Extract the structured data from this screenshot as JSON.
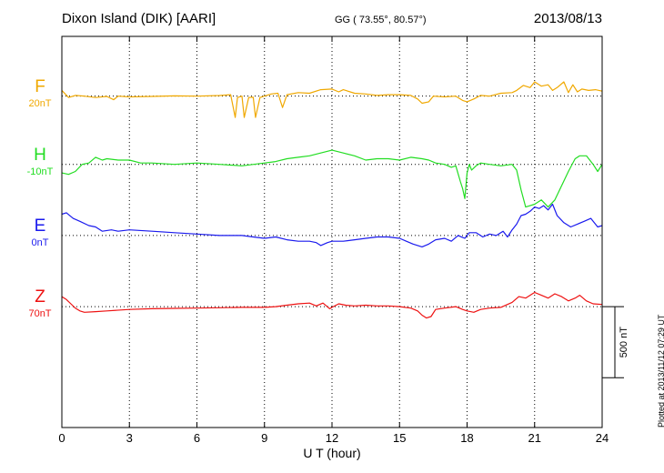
{
  "header": {
    "station": "Dixon Island (DIK)  [AARI]",
    "coords": "GG ( 73.55°,  80.57°)",
    "date": "2013/08/13"
  },
  "footer": {
    "plotted": "Plotted at 2013/11/12 07:29 UT"
  },
  "colors": {
    "F": "#f0a800",
    "H": "#22dd22",
    "E": "#1a1aee",
    "Z": "#ee1111"
  },
  "chart_data": {
    "type": "line",
    "xlabel": "U T (hour)",
    "xlim": [
      0,
      24
    ],
    "xticks": [
      0,
      3,
      6,
      9,
      12,
      15,
      18,
      21,
      24
    ],
    "ylim": [
      -850,
      1900
    ],
    "scale_bar": "500 nT",
    "grid": true,
    "series": [
      {
        "name": "F",
        "baseline": "20nT",
        "baseline_value": 1480,
        "color": "#f0a800",
        "x": [
          0,
          0.3,
          0.6,
          1.0,
          1.5,
          2.0,
          2.3,
          2.5,
          3.0,
          4.0,
          5.0,
          6.0,
          7.0,
          7.5,
          7.7,
          7.8,
          8.0,
          8.1,
          8.3,
          8.5,
          8.6,
          8.8,
          9.0,
          9.3,
          9.6,
          9.8,
          10.0,
          10.5,
          11.0,
          11.5,
          12.0,
          12.3,
          12.5,
          13.0,
          13.5,
          14.0,
          14.5,
          15.0,
          15.5,
          15.8,
          16.0,
          16.3,
          16.5,
          17.0,
          17.5,
          17.8,
          18.0,
          18.3,
          18.6,
          19.0,
          19.5,
          20.0,
          20.2,
          20.5,
          20.8,
          21.0,
          21.3,
          21.6,
          21.8,
          22.0,
          22.3,
          22.5,
          22.7,
          22.9,
          23.1,
          23.4,
          23.7,
          24.0
        ],
        "values": [
          1520,
          1470,
          1485,
          1480,
          1470,
          1478,
          1455,
          1480,
          1475,
          1478,
          1482,
          1480,
          1484,
          1490,
          1330,
          1470,
          1480,
          1330,
          1470,
          1472,
          1330,
          1470,
          1480,
          1495,
          1500,
          1400,
          1490,
          1505,
          1500,
          1525,
          1530,
          1510,
          1525,
          1500,
          1495,
          1485,
          1490,
          1490,
          1485,
          1460,
          1430,
          1440,
          1480,
          1475,
          1480,
          1450,
          1440,
          1460,
          1485,
          1480,
          1500,
          1505,
          1520,
          1555,
          1540,
          1580,
          1550,
          1560,
          1520,
          1540,
          1580,
          1505,
          1560,
          1510,
          1530,
          1520,
          1525,
          1515
        ]
      },
      {
        "name": "H",
        "baseline": "-10nT",
        "baseline_value": 1000,
        "color": "#22dd22",
        "x": [
          0,
          0.3,
          0.6,
          0.9,
          1.2,
          1.5,
          1.8,
          2.0,
          2.5,
          3.0,
          3.5,
          4.0,
          5.0,
          6.0,
          7.0,
          8.0,
          9.0,
          9.5,
          10.0,
          10.5,
          11.0,
          11.5,
          12.0,
          12.5,
          13.0,
          13.5,
          14.0,
          14.5,
          15.0,
          15.5,
          16.0,
          16.3,
          16.6,
          17.0,
          17.3,
          17.5,
          17.7,
          17.8,
          17.9,
          18.0,
          18.1,
          18.2,
          18.4,
          18.6,
          19.0,
          19.5,
          20.0,
          20.2,
          20.4,
          20.6,
          20.8,
          21.0,
          21.3,
          21.6,
          21.9,
          22.2,
          22.5,
          22.8,
          23.0,
          23.3,
          23.6,
          23.8,
          24.0
        ],
        "values": [
          940,
          930,
          950,
          1000,
          1010,
          1050,
          1030,
          1040,
          1030,
          1030,
          1010,
          1010,
          1000,
          1010,
          1000,
          990,
          1010,
          1020,
          1040,
          1050,
          1060,
          1080,
          1100,
          1080,
          1060,
          1030,
          1040,
          1040,
          1030,
          1050,
          1040,
          1030,
          1010,
          1000,
          980,
          990,
          880,
          830,
          760,
          940,
          1000,
          960,
          990,
          1010,
          1000,
          990,
          1000,
          960,
          820,
          700,
          710,
          720,
          750,
          700,
          750,
          850,
          950,
          1040,
          1060,
          1060,
          1000,
          950,
          1000
        ]
      },
      {
        "name": "E",
        "baseline": "0nT",
        "baseline_value": 500,
        "color": "#1a1aee",
        "x": [
          0,
          0.2,
          0.5,
          0.8,
          1.2,
          1.5,
          1.8,
          2.2,
          2.5,
          3.0,
          4.0,
          5.0,
          6.0,
          7.0,
          8.0,
          8.5,
          9.0,
          9.5,
          10.0,
          10.5,
          11.0,
          11.3,
          11.5,
          11.8,
          12.0,
          12.5,
          13.0,
          13.5,
          14.0,
          14.5,
          15.0,
          15.3,
          15.6,
          16.0,
          16.3,
          16.6,
          17.0,
          17.3,
          17.6,
          17.9,
          18.1,
          18.4,
          18.7,
          19.0,
          19.3,
          19.6,
          19.8,
          20.0,
          20.2,
          20.4,
          20.6,
          20.8,
          21.0,
          21.2,
          21.4,
          21.6,
          21.8,
          22.0,
          22.3,
          22.6,
          22.9,
          23.2,
          23.5,
          23.8,
          24.0
        ],
        "values": [
          650,
          660,
          620,
          600,
          570,
          560,
          530,
          540,
          530,
          540,
          530,
          520,
          510,
          500,
          500,
          490,
          480,
          490,
          470,
          460,
          460,
          450,
          430,
          450,
          460,
          460,
          470,
          480,
          490,
          490,
          480,
          460,
          440,
          420,
          440,
          470,
          480,
          460,
          500,
          480,
          520,
          520,
          490,
          510,
          500,
          530,
          490,
          540,
          580,
          640,
          650,
          670,
          700,
          690,
          710,
          680,
          720,
          640,
          590,
          560,
          580,
          600,
          620,
          560,
          570
        ]
      },
      {
        "name": "Z",
        "baseline": "70nT",
        "baseline_value": 0,
        "color": "#ee1111",
        "x": [
          0,
          0.2,
          0.4,
          0.6,
          0.8,
          1.0,
          1.5,
          2.0,
          3.0,
          4.0,
          5.0,
          6.0,
          7.0,
          8.0,
          9.0,
          9.5,
          10.0,
          10.5,
          11.0,
          11.3,
          11.6,
          11.9,
          12.0,
          12.3,
          12.6,
          13.0,
          13.5,
          14.0,
          14.5,
          15.0,
          15.5,
          15.8,
          16.0,
          16.2,
          16.4,
          16.6,
          17.0,
          17.5,
          17.8,
          18.0,
          18.3,
          18.6,
          19.0,
          19.5,
          20.0,
          20.3,
          20.6,
          20.9,
          21.0,
          21.3,
          21.6,
          21.9,
          22.2,
          22.5,
          22.8,
          23.0,
          23.3,
          23.6,
          24.0
        ],
        "values": [
          70,
          50,
          20,
          -10,
          -30,
          -40,
          -35,
          -30,
          -20,
          -15,
          -12,
          -10,
          -8,
          -5,
          -5,
          0,
          10,
          20,
          25,
          5,
          25,
          -15,
          -5,
          20,
          10,
          5,
          10,
          5,
          5,
          0,
          -10,
          -30,
          -60,
          -80,
          -70,
          -20,
          -10,
          0,
          -20,
          -30,
          -40,
          -20,
          -10,
          -5,
          30,
          70,
          60,
          90,
          100,
          80,
          60,
          90,
          70,
          40,
          60,
          80,
          40,
          20,
          15
        ]
      }
    ]
  }
}
